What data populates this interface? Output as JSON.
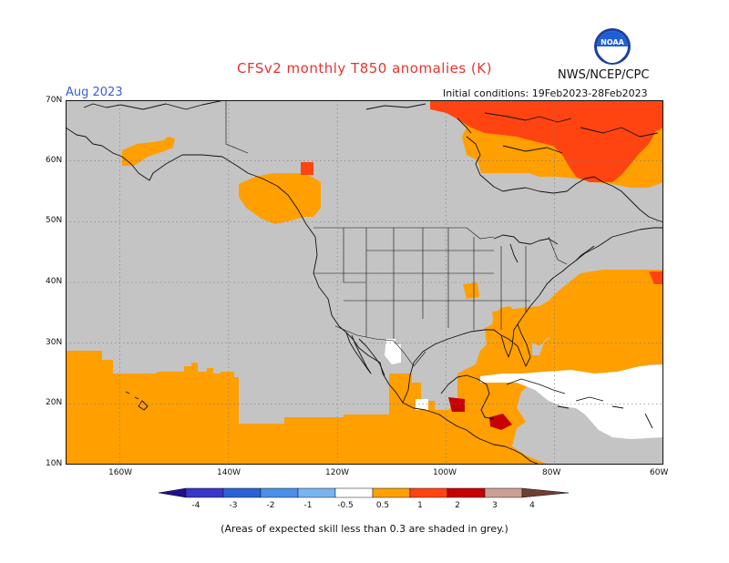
{
  "title": "CFSv2 monthly T850 anomalies (K)",
  "agency": "NWS/NCEP/CPC",
  "logo_text": "NOAA",
  "valid_month": "Aug 2023",
  "initial_conditions": "Initial conditions: 19Feb2023-28Feb2023",
  "footnote": "(Areas of expected skill less than 0.3 are shaded in grey.)",
  "map": {
    "lat_labels": [
      "70N",
      "60N",
      "50N",
      "40N",
      "30N",
      "20N",
      "10N"
    ],
    "lon_labels": [
      "160W",
      "140W",
      "120W",
      "100W",
      "80W",
      "60W"
    ],
    "colors": {
      "low_skill": "#c4c4c4",
      "no_anomaly": "#ffffff",
      "anom_0_5_to_1": "#ff9f00",
      "anom_1_to_2": "#ff4411",
      "anom_2_to_3": "#c80000",
      "coast": "#111111"
    }
  },
  "colorbar": {
    "ticks": [
      "-4",
      "-3",
      "-2",
      "-1",
      "-0.5",
      "0.5",
      "1",
      "2",
      "3",
      "4"
    ],
    "colors": [
      "#1f0f8f",
      "#3737c8",
      "#2a62d6",
      "#4a90e8",
      "#78b4f0",
      "#ffffff",
      "#ffa000",
      "#ff4411",
      "#c80000",
      "#cc9e94",
      "#6e4034"
    ]
  }
}
